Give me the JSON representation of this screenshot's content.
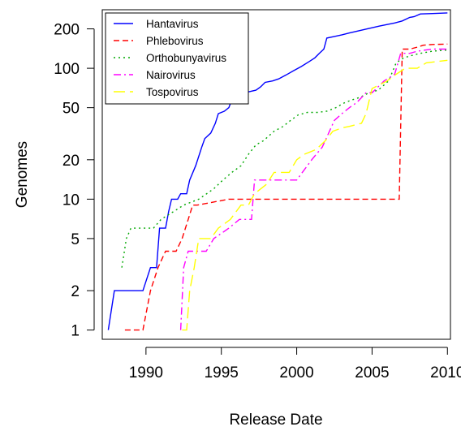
{
  "chart_data": {
    "type": "line",
    "xlabel": "Release Date",
    "ylabel": "Genomes",
    "y_scale": "log",
    "xlim": [
      1987.1,
      2010.2
    ],
    "ylim": [
      0.85,
      280
    ],
    "x_ticks": [
      1990,
      1995,
      2000,
      2005,
      2010
    ],
    "y_ticks": [
      1,
      2,
      5,
      10,
      20,
      50,
      100,
      200
    ],
    "legend_position": "top-left",
    "series": [
      {
        "name": "Hantavirus",
        "color": "#0000ff",
        "dash": "solid",
        "points": [
          [
            1987.5,
            1
          ],
          [
            1987.9,
            2
          ],
          [
            1989.8,
            2
          ],
          [
            1990.3,
            3
          ],
          [
            1990.7,
            3
          ],
          [
            1990.9,
            6
          ],
          [
            1991.3,
            6
          ],
          [
            1991.5,
            8
          ],
          [
            1991.7,
            10
          ],
          [
            1992.1,
            10
          ],
          [
            1992.3,
            11
          ],
          [
            1992.7,
            11
          ],
          [
            1992.9,
            14
          ],
          [
            1993.3,
            18
          ],
          [
            1993.7,
            25
          ],
          [
            1993.9,
            29
          ],
          [
            1994.3,
            32
          ],
          [
            1994.6,
            38
          ],
          [
            1994.8,
            45
          ],
          [
            1995.2,
            47
          ],
          [
            1995.5,
            50
          ],
          [
            1995.8,
            62
          ],
          [
            1996.3,
            65
          ],
          [
            1996.8,
            66
          ],
          [
            1997.3,
            68
          ],
          [
            1997.6,
            72
          ],
          [
            1997.9,
            78
          ],
          [
            1998.4,
            80
          ],
          [
            1998.8,
            83
          ],
          [
            1999.3,
            89
          ],
          [
            1999.8,
            96
          ],
          [
            2000.3,
            103
          ],
          [
            2000.8,
            112
          ],
          [
            2001.2,
            120
          ],
          [
            2001.5,
            130
          ],
          [
            2001.8,
            140
          ],
          [
            2002.0,
            170
          ],
          [
            2002.5,
            175
          ],
          [
            2003.0,
            180
          ],
          [
            2003.5,
            186
          ],
          [
            2004.0,
            192
          ],
          [
            2004.5,
            198
          ],
          [
            2005.0,
            204
          ],
          [
            2005.5,
            210
          ],
          [
            2006.0,
            216
          ],
          [
            2006.5,
            222
          ],
          [
            2007.0,
            230
          ],
          [
            2007.5,
            245
          ],
          [
            2007.8,
            248
          ],
          [
            2008.2,
            260
          ],
          [
            2009.0,
            262
          ],
          [
            2010.0,
            265
          ]
        ]
      },
      {
        "name": "Phlebovirus",
        "color": "#ff0000",
        "dash": "7 4",
        "points": [
          [
            1988.6,
            1
          ],
          [
            1989.8,
            1
          ],
          [
            1990.3,
            2
          ],
          [
            1990.8,
            3
          ],
          [
            1991.3,
            4
          ],
          [
            1992.0,
            4
          ],
          [
            1992.4,
            5
          ],
          [
            1992.8,
            7
          ],
          [
            1993.1,
            9
          ],
          [
            1993.4,
            9
          ],
          [
            1995.5,
            10
          ],
          [
            2002.0,
            10
          ],
          [
            2006.8,
            10
          ],
          [
            2007.0,
            140
          ],
          [
            2007.5,
            140
          ],
          [
            2008.0,
            145
          ],
          [
            2008.4,
            150
          ],
          [
            2009.0,
            152
          ],
          [
            2010.0,
            153
          ]
        ]
      },
      {
        "name": "Orthobunyavirus",
        "color": "#00a800",
        "dash": "2 4",
        "points": [
          [
            1988.4,
            3
          ],
          [
            1988.7,
            5
          ],
          [
            1989.0,
            6
          ],
          [
            1990.5,
            6
          ],
          [
            1991.0,
            7
          ],
          [
            1991.8,
            8
          ],
          [
            1992.5,
            9
          ],
          [
            1993.5,
            10
          ],
          [
            1994.5,
            12
          ],
          [
            1995.1,
            14
          ],
          [
            1995.7,
            16
          ],
          [
            1996.3,
            18
          ],
          [
            1996.8,
            22
          ],
          [
            1997.3,
            26
          ],
          [
            1997.8,
            28
          ],
          [
            1998.5,
            33
          ],
          [
            1999.1,
            36
          ],
          [
            1999.6,
            40
          ],
          [
            2000.1,
            44
          ],
          [
            2000.7,
            46
          ],
          [
            2001.4,
            46
          ],
          [
            2002.0,
            47
          ],
          [
            2002.6,
            50
          ],
          [
            2003.1,
            54
          ],
          [
            2003.6,
            57
          ],
          [
            2004.2,
            60
          ],
          [
            2004.8,
            65
          ],
          [
            2005.4,
            68
          ],
          [
            2006.1,
            80
          ],
          [
            2006.6,
            110
          ],
          [
            2007.1,
            120
          ],
          [
            2007.6,
            125
          ],
          [
            2008.2,
            130
          ],
          [
            2009.0,
            135
          ],
          [
            2010.0,
            138
          ]
        ]
      },
      {
        "name": "Nairovirus",
        "color": "#ff00ff",
        "dash": "9 4 2 4",
        "points": [
          [
            1992.3,
            1
          ],
          [
            1992.5,
            3
          ],
          [
            1992.8,
            4
          ],
          [
            1994.0,
            4
          ],
          [
            1994.5,
            5
          ],
          [
            1995.5,
            6
          ],
          [
            1996.2,
            7
          ],
          [
            1997.0,
            7
          ],
          [
            1997.2,
            14
          ],
          [
            1998.0,
            14
          ],
          [
            2000.0,
            14
          ],
          [
            2001.0,
            20
          ],
          [
            2001.7,
            25
          ],
          [
            2002.5,
            40
          ],
          [
            2003.0,
            45
          ],
          [
            2003.5,
            50
          ],
          [
            2004.0,
            55
          ],
          [
            2004.6,
            65
          ],
          [
            2005.0,
            65
          ],
          [
            2005.8,
            80
          ],
          [
            2006.5,
            90
          ],
          [
            2006.9,
            130
          ],
          [
            2007.5,
            130
          ],
          [
            2008.0,
            135
          ],
          [
            2009.0,
            140
          ],
          [
            2010.0,
            140
          ]
        ]
      },
      {
        "name": "Tospovirus",
        "color": "#ffff00",
        "dash": "14 6",
        "points": [
          [
            1992.4,
            1
          ],
          [
            1992.7,
            1
          ],
          [
            1992.9,
            2
          ],
          [
            1993.2,
            3
          ],
          [
            1993.5,
            5
          ],
          [
            1994.3,
            5
          ],
          [
            1994.8,
            6
          ],
          [
            1995.6,
            7
          ],
          [
            1996.3,
            9
          ],
          [
            1996.8,
            9
          ],
          [
            1997.2,
            11
          ],
          [
            1998.0,
            13
          ],
          [
            1998.5,
            16
          ],
          [
            1999.5,
            16
          ],
          [
            2000.0,
            20
          ],
          [
            2000.5,
            22
          ],
          [
            2001.3,
            24
          ],
          [
            2001.9,
            28
          ],
          [
            2002.4,
            33
          ],
          [
            2003.0,
            35
          ],
          [
            2003.5,
            36
          ],
          [
            2004.3,
            38
          ],
          [
            2004.6,
            45
          ],
          [
            2005.0,
            70
          ],
          [
            2006.0,
            80
          ],
          [
            2006.6,
            90
          ],
          [
            2007.2,
            100
          ],
          [
            2008.0,
            100
          ],
          [
            2008.6,
            110
          ],
          [
            2010.0,
            115
          ]
        ]
      }
    ]
  }
}
